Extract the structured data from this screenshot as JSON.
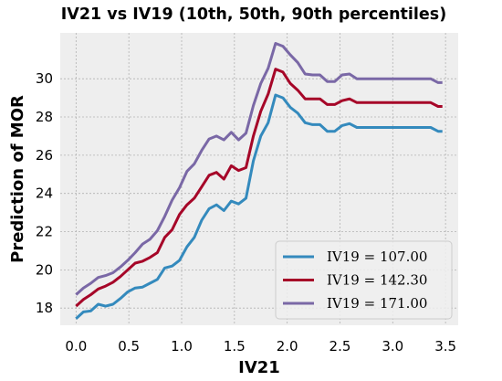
{
  "chart_data": {
    "type": "line",
    "title": "IV21 vs IV19 (10th, 50th, 90th percentiles)",
    "xlabel": "IV21",
    "ylabel": "Prediction of MOR",
    "xlim": [
      -0.15,
      3.62
    ],
    "ylim": [
      17.1,
      32.4
    ],
    "xticks": [
      0.0,
      0.5,
      1.0,
      1.5,
      2.0,
      2.5,
      3.0,
      3.5
    ],
    "xtick_labels": [
      "0.0",
      "0.5",
      "1.0",
      "1.5",
      "2.0",
      "2.5",
      "3.0",
      "3.5"
    ],
    "yticks": [
      18,
      20,
      22,
      24,
      26,
      28,
      30
    ],
    "ytick_labels": [
      "18",
      "20",
      "22",
      "24",
      "26",
      "28",
      "30"
    ],
    "grid": true,
    "legend_position": "bottom-right",
    "series": [
      {
        "name": "IV19 = 107.00",
        "color": "#348ABD",
        "x": [
          0.0,
          0.07,
          0.14,
          0.21,
          0.28,
          0.35,
          0.42,
          0.49,
          0.56,
          0.63,
          0.7,
          0.77,
          0.84,
          0.91,
          0.98,
          1.05,
          1.12,
          1.19,
          1.26,
          1.33,
          1.4,
          1.47,
          1.54,
          1.61,
          1.68,
          1.75,
          1.82,
          1.89,
          1.96,
          2.03,
          2.1,
          2.17,
          2.24,
          2.31,
          2.38,
          2.45,
          2.52,
          2.59,
          2.66,
          2.73,
          2.8,
          2.87,
          2.94,
          3.01,
          3.08,
          3.15,
          3.22,
          3.29,
          3.36,
          3.43,
          3.47
        ],
        "y": [
          17.45,
          17.8,
          17.85,
          18.2,
          18.1,
          18.2,
          18.5,
          18.85,
          19.05,
          19.1,
          19.3,
          19.5,
          20.1,
          20.2,
          20.5,
          21.2,
          21.7,
          22.6,
          23.2,
          23.4,
          23.1,
          23.6,
          23.45,
          23.75,
          25.7,
          27.0,
          27.7,
          29.15,
          29.0,
          28.5,
          28.2,
          27.7,
          27.6,
          27.6,
          27.25,
          27.25,
          27.55,
          27.65,
          27.45,
          27.45,
          27.45,
          27.45,
          27.45,
          27.45,
          27.45,
          27.45,
          27.45,
          27.45,
          27.45,
          27.25,
          27.25
        ]
      },
      {
        "name": "IV19 = 142.30",
        "color": "#A60628",
        "x": [
          0.0,
          0.07,
          0.14,
          0.21,
          0.28,
          0.35,
          0.42,
          0.49,
          0.56,
          0.63,
          0.7,
          0.77,
          0.84,
          0.91,
          0.98,
          1.05,
          1.12,
          1.19,
          1.26,
          1.33,
          1.4,
          1.47,
          1.54,
          1.61,
          1.68,
          1.75,
          1.82,
          1.89,
          1.96,
          2.03,
          2.1,
          2.17,
          2.24,
          2.31,
          2.38,
          2.45,
          2.52,
          2.59,
          2.66,
          2.73,
          2.8,
          2.87,
          2.94,
          3.01,
          3.08,
          3.15,
          3.22,
          3.29,
          3.36,
          3.43,
          3.47
        ],
        "y": [
          18.1,
          18.45,
          18.7,
          19.0,
          19.15,
          19.35,
          19.65,
          20.0,
          20.35,
          20.45,
          20.65,
          20.9,
          21.7,
          22.1,
          22.9,
          23.4,
          23.75,
          24.35,
          24.95,
          25.1,
          24.75,
          25.45,
          25.2,
          25.35,
          27.0,
          28.3,
          29.2,
          30.5,
          30.35,
          29.75,
          29.4,
          28.95,
          28.95,
          28.95,
          28.65,
          28.65,
          28.85,
          28.95,
          28.75,
          28.75,
          28.75,
          28.75,
          28.75,
          28.75,
          28.75,
          28.75,
          28.75,
          28.75,
          28.75,
          28.55,
          28.55
        ]
      },
      {
        "name": "IV19 = 171.00",
        "color": "#7A68A6",
        "x": [
          0.0,
          0.07,
          0.14,
          0.21,
          0.28,
          0.35,
          0.42,
          0.49,
          0.56,
          0.63,
          0.7,
          0.77,
          0.84,
          0.91,
          0.98,
          1.05,
          1.12,
          1.19,
          1.26,
          1.33,
          1.4,
          1.47,
          1.54,
          1.61,
          1.68,
          1.75,
          1.82,
          1.89,
          1.96,
          2.03,
          2.1,
          2.17,
          2.24,
          2.31,
          2.38,
          2.45,
          2.52,
          2.59,
          2.66,
          2.73,
          2.8,
          2.87,
          2.94,
          3.01,
          3.08,
          3.15,
          3.22,
          3.29,
          3.36,
          3.43,
          3.47
        ],
        "y": [
          18.7,
          19.05,
          19.3,
          19.6,
          19.7,
          19.85,
          20.15,
          20.5,
          20.9,
          21.35,
          21.6,
          22.05,
          22.8,
          23.65,
          24.3,
          25.15,
          25.55,
          26.25,
          26.85,
          27.0,
          26.8,
          27.2,
          26.8,
          27.15,
          28.6,
          29.75,
          30.55,
          31.85,
          31.7,
          31.25,
          30.85,
          30.25,
          30.2,
          30.2,
          29.85,
          29.85,
          30.2,
          30.25,
          30.0,
          30.0,
          30.0,
          30.0,
          30.0,
          30.0,
          30.0,
          30.0,
          30.0,
          30.0,
          30.0,
          29.8,
          29.8
        ]
      }
    ]
  }
}
